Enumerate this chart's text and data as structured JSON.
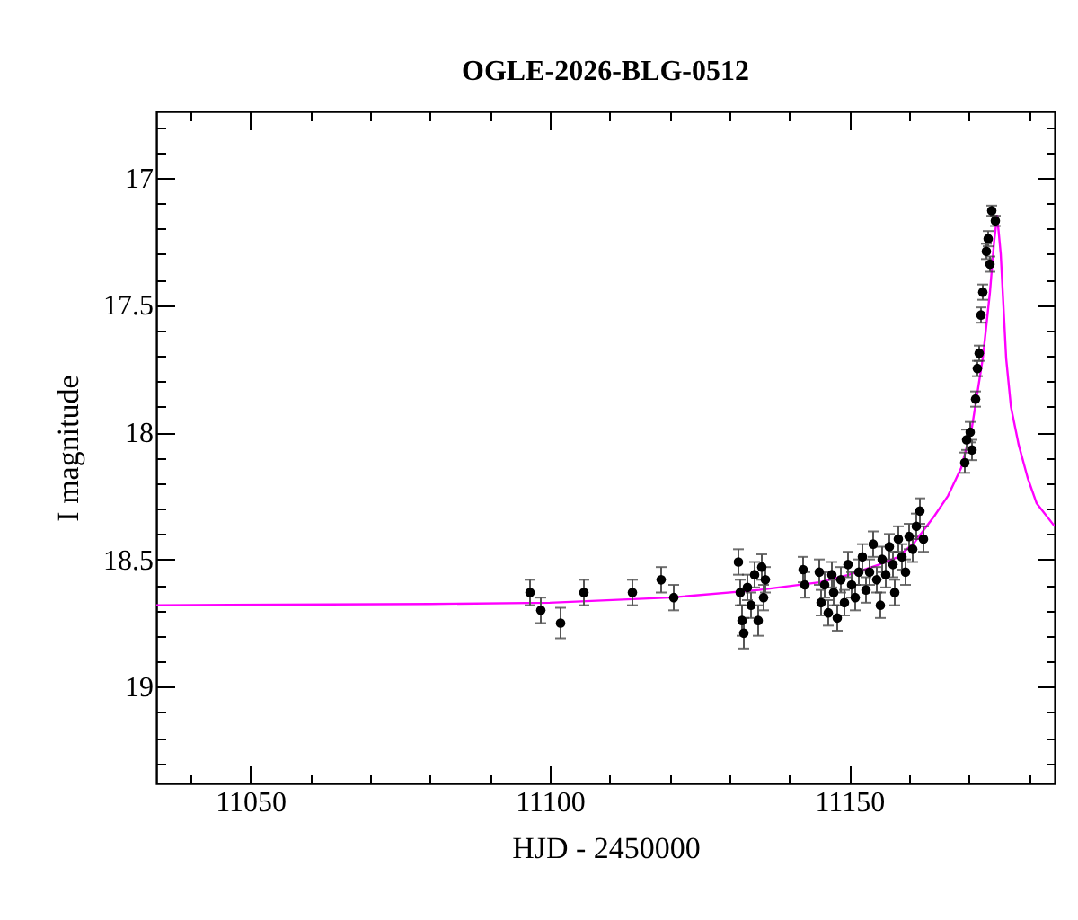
{
  "chart_data": {
    "type": "scatter",
    "title": "OGLE-2026-BLG-0512",
    "xlabel": "HJD - 2450000",
    "ylabel": "I magnitude",
    "xlim": [
      11034.3,
      11184.3
    ],
    "ylim": [
      19.38,
      16.74
    ],
    "xticks": [
      {
        "value": 11040,
        "label": null
      },
      11050,
      {
        "value": 11060,
        "label": null
      },
      {
        "value": 11070,
        "label": null
      },
      {
        "value": 11080,
        "label": null
      },
      {
        "value": 11090,
        "label": null
      },
      11100,
      {
        "value": 11110,
        "label": null
      },
      {
        "value": 11120,
        "label": null
      },
      {
        "value": 11130,
        "label": null
      },
      {
        "value": 11140,
        "label": null
      },
      11150,
      {
        "value": 11160,
        "label": null
      },
      {
        "value": 11170,
        "label": null
      },
      {
        "value": 11180,
        "label": null
      }
    ],
    "yticks": [
      {
        "value": 16.8,
        "label": null
      },
      {
        "value": 16.9,
        "label": null
      },
      17,
      {
        "value": 17.1,
        "label": null
      },
      {
        "value": 17.2,
        "label": null
      },
      {
        "value": 17.3,
        "label": null
      },
      {
        "value": 17.4,
        "label": null
      },
      17.5,
      {
        "value": 17.6,
        "label": null
      },
      {
        "value": 17.7,
        "label": null
      },
      {
        "value": 17.8,
        "label": null
      },
      {
        "value": 17.9,
        "label": null
      },
      18,
      {
        "value": 18.1,
        "label": null
      },
      {
        "value": 18.2,
        "label": null
      },
      {
        "value": 18.3,
        "label": null
      },
      {
        "value": 18.4,
        "label": null
      },
      18.5,
      {
        "value": 18.6,
        "label": null
      },
      {
        "value": 18.7,
        "label": null
      },
      {
        "value": 18.8,
        "label": null
      },
      {
        "value": 18.9,
        "label": null
      },
      19,
      {
        "value": 19.1,
        "label": null
      },
      {
        "value": 19.2,
        "label": null
      },
      {
        "value": 19.3,
        "label": null
      }
    ],
    "series": [
      {
        "type": "line",
        "color": "#ff00ff",
        "x": [
          11034.3,
          11080,
          11100,
          11120,
          11135,
          11145,
          11150,
          11155,
          11158.2,
          11161,
          11164.2,
          11166.5,
          11168.7,
          11170.5,
          11172.3,
          11173.5,
          11174.2,
          11174.7,
          11175.3,
          11176.2,
          11177,
          11178.3,
          11179.8,
          11181.3,
          11184.3
        ],
        "values": [
          18.68,
          18.675,
          18.67,
          18.65,
          18.62,
          18.59,
          18.56,
          18.52,
          18.49,
          18.43,
          18.33,
          18.25,
          18.14,
          17.98,
          17.71,
          17.45,
          17.25,
          17.15,
          17.3,
          17.71,
          17.9,
          18.05,
          18.18,
          18.28,
          18.37
        ]
      },
      {
        "marker": "circle",
        "color": "#000000",
        "x": [
          11096.7,
          11098.5,
          11101.8,
          11105.7,
          11113.8,
          11118.6,
          11120.7,
          11131.5,
          11131.8,
          11132.1,
          11132.4,
          11133,
          11133.6,
          11134.2,
          11134.8,
          11135.4,
          11135.7,
          11136,
          11142.3,
          11142.6,
          11145,
          11145.3,
          11145.9,
          11146.5,
          11147.1,
          11147.4,
          11148,
          11148.6,
          11149.2,
          11149.8,
          11150.4,
          11151,
          11151.6,
          11152.2,
          11152.8,
          11153.4,
          11154,
          11154.6,
          11155.2,
          11155.5,
          11156.1,
          11156.7,
          11157.3,
          11157.6,
          11158.2,
          11158.8,
          11159.4,
          11160,
          11160.6,
          11161.2,
          11161.8,
          11162.4,
          11169.3,
          11169.6,
          11170.2,
          11170.5,
          11171.1,
          11171.4,
          11171.7,
          11172,
          11172.3,
          11172.9,
          11173.2,
          11173.5,
          11173.8,
          11174.4
        ],
        "values": [
          18.63,
          18.7,
          18.75,
          18.63,
          18.63,
          18.58,
          18.65,
          18.51,
          18.63,
          18.74,
          18.79,
          18.61,
          18.68,
          18.56,
          18.74,
          18.53,
          18.65,
          18.58,
          18.54,
          18.6,
          18.55,
          18.67,
          18.6,
          18.71,
          18.56,
          18.63,
          18.73,
          18.58,
          18.67,
          18.52,
          18.6,
          18.65,
          18.55,
          18.49,
          18.62,
          18.55,
          18.44,
          18.58,
          18.68,
          18.5,
          18.56,
          18.45,
          18.52,
          18.63,
          18.42,
          18.49,
          18.55,
          18.41,
          18.46,
          18.37,
          18.31,
          18.42,
          18.12,
          18.03,
          18,
          18.07,
          17.87,
          17.75,
          17.69,
          17.54,
          17.45,
          17.29,
          17.24,
          17.34,
          17.13,
          17.17
        ],
        "errors": [
          0.05,
          0.05,
          0.06,
          0.05,
          0.05,
          0.05,
          0.05,
          0.05,
          0.05,
          0.06,
          0.06,
          0.05,
          0.05,
          0.05,
          0.06,
          0.05,
          0.05,
          0.05,
          0.05,
          0.05,
          0.05,
          0.05,
          0.05,
          0.05,
          0.05,
          0.05,
          0.05,
          0.05,
          0.05,
          0.05,
          0.05,
          0.05,
          0.05,
          0.05,
          0.05,
          0.05,
          0.05,
          0.05,
          0.05,
          0.05,
          0.05,
          0.05,
          0.05,
          0.05,
          0.05,
          0.05,
          0.05,
          0.05,
          0.05,
          0.05,
          0.05,
          0.05,
          0.04,
          0.04,
          0.04,
          0.04,
          0.03,
          0.03,
          0.03,
          0.03,
          0.03,
          0.03,
          0.03,
          0.03,
          0.02,
          0.02
        ]
      }
    ]
  }
}
